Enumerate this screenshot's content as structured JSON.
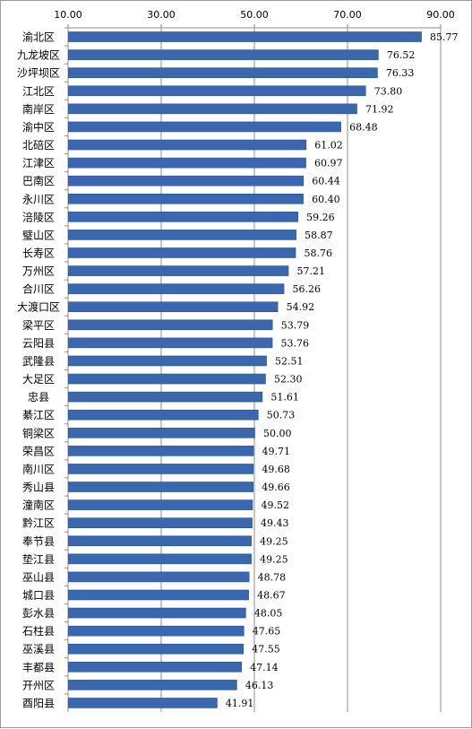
{
  "chart_data": {
    "type": "bar",
    "orientation": "horizontal",
    "title": "",
    "xlabel": "",
    "ylabel": "",
    "xlim": [
      10,
      90
    ],
    "x_ticks": [
      "10.00",
      "30.00",
      "50.00",
      "70.00",
      "90.00"
    ],
    "x_tick_values": [
      10,
      30,
      50,
      70,
      90
    ],
    "axis_position": "top",
    "grid": "vertical",
    "bar_color": "#3a68b0",
    "categories": [
      "渝北区",
      "九龙坡区",
      "沙坪坝区",
      "江北区",
      "南岸区",
      "渝中区",
      "北碚区",
      "江津区",
      "巴南区",
      "永川区",
      "涪陵区",
      "璧山区",
      "长寿区",
      "万州区",
      "合川区",
      "大渡口区",
      "梁平区",
      "云阳县",
      "武隆县",
      "大足区",
      "忠县",
      "綦江区",
      "铜梁区",
      "荣昌区",
      "南川区",
      "秀山县",
      "潼南区",
      "黔江区",
      "奉节县",
      "垫江县",
      "巫山县",
      "城口县",
      "彭水县",
      "石柱县",
      "巫溪县",
      "丰都县",
      "开州区",
      "酉阳县"
    ],
    "values": [
      85.77,
      76.52,
      76.33,
      73.8,
      71.92,
      68.48,
      61.02,
      60.97,
      60.44,
      60.4,
      59.26,
      58.87,
      58.76,
      57.21,
      56.26,
      54.92,
      53.79,
      53.76,
      52.51,
      52.3,
      51.61,
      50.73,
      50.0,
      49.71,
      49.68,
      49.66,
      49.52,
      49.43,
      49.25,
      49.25,
      48.78,
      48.67,
      48.05,
      47.65,
      47.55,
      47.14,
      46.13,
      41.91
    ],
    "value_labels": [
      "85.77",
      "76.52",
      "76.33",
      "73.80",
      "71.92",
      "68.48",
      "61.02",
      "60.97",
      "60.44",
      "60.40",
      "59.26",
      "58.87",
      "58.76",
      "57.21",
      "56.26",
      "54.92",
      "53.79",
      "53.76",
      "52.51",
      "52.30",
      "51.61",
      "50.73",
      "50.00",
      "49.71",
      "49.68",
      "49.66",
      "49.52",
      "49.43",
      "49.25",
      "49.25",
      "48.78",
      "48.67",
      "48.05",
      "47.65",
      "47.55",
      "47.14",
      "46.13",
      "41.91"
    ]
  }
}
